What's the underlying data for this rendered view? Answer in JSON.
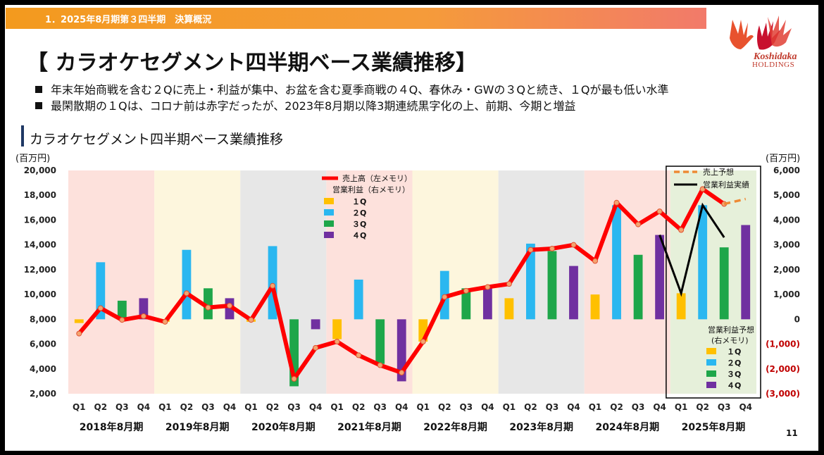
{
  "header": {
    "banner": "1．2025年8月期第３四半期　決算概況",
    "title": "【 カラオケセグメント四半期ベース業績推移】",
    "logo_text": "Koshidaka",
    "logo_sub": "HOLDINGS"
  },
  "bullets": [
    "年末年始商戦を含む２Qに売上・利益が集中、お盆を含む夏季商戦の４Q、春休み・GWの３Qと続き、１Qが最も低い水準",
    "最閑散期の１Qは、コロナ前は赤字だったが、2023年8月期以降3期連続黒字化の上、前期、今期と増益"
  ],
  "page_number": "11",
  "chart_data": {
    "type": "bar",
    "title": "カラオケセグメント四半期ベース業績推移",
    "unit_left": "(百万円)",
    "unit_right": "(百万円)",
    "left_axis": {
      "range": [
        2000,
        20000
      ],
      "ticks": [
        "20,000",
        "18,000",
        "16,000",
        "14,000",
        "12,000",
        "10,000",
        "8,000",
        "6,000",
        "4,000",
        "2,000"
      ]
    },
    "right_axis": {
      "range": [
        -3000,
        6000
      ],
      "ticks": [
        "6,000",
        "5,000",
        "4,000",
        "3,000",
        "2,000",
        "1,000",
        "0",
        "(1,000)",
        "(2,000)",
        "(3,000)"
      ]
    },
    "quarter_labels": [
      "Q1",
      "Q2",
      "Q3",
      "Q4"
    ],
    "years": [
      "2018年8月期",
      "2019年8月期",
      "2020年8月期",
      "2021年8月期",
      "2022年8月期",
      "2023年8月期",
      "2024年8月期",
      "2025年8月期"
    ],
    "band_colors": [
      "#fde1dc",
      "#fdf6dd",
      "#e7e7e7",
      "#fde1dc",
      "#fdf6dd",
      "#e7e7e7",
      "#fde1dc",
      "#e6f0da"
    ],
    "colors": {
      "q1": "#ffc000",
      "q2": "#2ab7f0",
      "q3": "#1ea64a",
      "q4": "#7030a0",
      "sales": "#ff0000",
      "forecast": "#ee8a35",
      "actual_op": "#000000"
    },
    "operating_income": [
      -150,
      2300,
      750,
      850,
      -100,
      2800,
      1250,
      850,
      -100,
      2950,
      -2700,
      -400,
      -800,
      1600,
      -1800,
      -2500,
      -900,
      1950,
      1250,
      1250,
      850,
      3050,
      2750,
      2150,
      1000,
      4600,
      2600,
      3400,
      1050,
      4600,
      2900,
      3800
    ],
    "forecast_operating_quarters": [
      "Q1",
      "Q2",
      "Q3",
      "Q4"
    ],
    "sales": [
      6850,
      8900,
      7950,
      8250,
      7800,
      10100,
      8950,
      9100,
      7950,
      10700,
      3200,
      5700,
      6200,
      5100,
      4300,
      3700,
      6200,
      9800,
      10300,
      10600,
      10850,
      13600,
      13700,
      14000,
      12700,
      17400,
      15650,
      16700,
      15200,
      18500,
      17300,
      17700
    ],
    "sales_forecast_quarters": [
      "Q3",
      "Q4"
    ],
    "operating_actual_2025": [
      3400,
      1050,
      4600,
      3300
    ],
    "legend_left": {
      "sales": "売上高（左メモリ）",
      "op": "営業利益（右メモリ）",
      "q1": "１Q",
      "q2": "２Q",
      "q3": "３Q",
      "q4": "４Q"
    },
    "legend_right_top": {
      "forecast": "売上予想",
      "actual": "営業利益実績"
    },
    "legend_right_bottom": {
      "title1": "営業利益予想",
      "title2": "(右メモリ)",
      "q1": "１Q",
      "q2": "２Q",
      "q3": "３Q",
      "q4": "４Q"
    }
  }
}
